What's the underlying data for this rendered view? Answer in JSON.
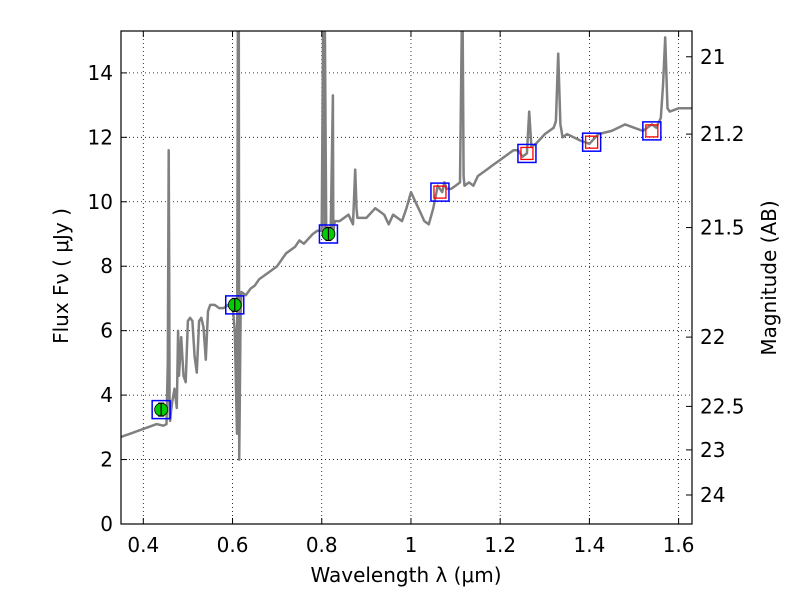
{
  "chart_data": {
    "type": "line",
    "xlabel": "Wavelength  λ (μm)",
    "ylabel": "Flux  Fν  ( μJy )",
    "ylabel_right": "Magnitude (AB)",
    "xlim": [
      0.35,
      1.63
    ],
    "ylim": [
      0,
      15.3
    ],
    "grid": "dotted",
    "x_ticks": [
      0.4,
      0.6,
      0.8,
      1.0,
      1.2,
      1.4,
      1.6
    ],
    "x_tick_labels": [
      "0.4",
      "0.6",
      "0.8",
      "1",
      "1.2",
      "1.4",
      "1.6"
    ],
    "y_ticks": [
      0,
      2,
      4,
      6,
      8,
      10,
      12,
      14
    ],
    "y_tick_labels": [
      "0",
      "2",
      "4",
      "6",
      "8",
      "10",
      "12",
      "14"
    ],
    "right_ticks": [
      {
        "label": "21",
        "flux": 14.5
      },
      {
        "label": "21.2",
        "flux": 12.1
      },
      {
        "label": "21.5",
        "flux": 9.2
      },
      {
        "label": "22",
        "flux": 5.8
      },
      {
        "label": "22.5",
        "flux": 3.65
      },
      {
        "label": "23",
        "flux": 2.3
      },
      {
        "label": "24",
        "flux": 0.9
      }
    ],
    "series": [
      {
        "name": "model_spectrum",
        "style": "line",
        "color": "#808080",
        "x": [
          0.35,
          0.37,
          0.39,
          0.41,
          0.43,
          0.445,
          0.452,
          0.455,
          0.457,
          0.458,
          0.459,
          0.46,
          0.462,
          0.465,
          0.47,
          0.475,
          0.478,
          0.48,
          0.485,
          0.49,
          0.495,
          0.5,
          0.505,
          0.51,
          0.515,
          0.52,
          0.525,
          0.53,
          0.535,
          0.54,
          0.545,
          0.55,
          0.56,
          0.57,
          0.58,
          0.59,
          0.6,
          0.605,
          0.61,
          0.612,
          0.614,
          0.615,
          0.616,
          0.618,
          0.62,
          0.63,
          0.64,
          0.65,
          0.66,
          0.67,
          0.68,
          0.7,
          0.72,
          0.74,
          0.75,
          0.76,
          0.78,
          0.79,
          0.8,
          0.803,
          0.805,
          0.806,
          0.807,
          0.81,
          0.815,
          0.82,
          0.825,
          0.826,
          0.828,
          0.83,
          0.84,
          0.86,
          0.87,
          0.875,
          0.878,
          0.88,
          0.9,
          0.92,
          0.94,
          0.95,
          0.96,
          0.98,
          0.99,
          1.0,
          1.01,
          1.02,
          1.03,
          1.04,
          1.05,
          1.06,
          1.07,
          1.075,
          1.08,
          1.09,
          1.1,
          1.11,
          1.114,
          1.116,
          1.118,
          1.12,
          1.13,
          1.14,
          1.15,
          1.17,
          1.18,
          1.2,
          1.22,
          1.23,
          1.24,
          1.25,
          1.26,
          1.265,
          1.27,
          1.28,
          1.3,
          1.32,
          1.325,
          1.33,
          1.335,
          1.34,
          1.35,
          1.38,
          1.4,
          1.42,
          1.45,
          1.48,
          1.5,
          1.52,
          1.54,
          1.55,
          1.56,
          1.565,
          1.57,
          1.575,
          1.58,
          1.6,
          1.63
        ],
        "y": [
          2.7,
          2.8,
          2.9,
          3.0,
          3.1,
          3.05,
          3.1,
          5.0,
          11.6,
          8.0,
          3.5,
          3.2,
          3.5,
          3.8,
          4.2,
          3.6,
          6.0,
          4.6,
          5.8,
          4.6,
          4.4,
          6.3,
          6.4,
          6.3,
          5.2,
          4.7,
          6.3,
          6.4,
          6.1,
          5.1,
          6.6,
          6.8,
          6.8,
          6.7,
          6.7,
          6.8,
          6.8,
          6.0,
          2.8,
          16,
          15.5,
          2.0,
          3.5,
          6.5,
          7.2,
          7.1,
          7.3,
          7.4,
          7.6,
          7.7,
          7.8,
          8.0,
          8.4,
          8.6,
          8.8,
          8.7,
          9.0,
          9.1,
          9.1,
          15.3,
          15.3,
          9.0,
          15.3,
          9.2,
          9.2,
          9.1,
          13.3,
          9.0,
          9.3,
          9.4,
          9.4,
          9.6,
          9.3,
          11.0,
          9.8,
          9.5,
          9.5,
          9.8,
          9.6,
          9.3,
          9.6,
          9.4,
          9.8,
          10.3,
          10.0,
          9.7,
          9.4,
          9.3,
          9.8,
          10.5,
          10.3,
          10.6,
          10.4,
          10.4,
          10.5,
          10.6,
          15.5,
          15.3,
          10.8,
          10.5,
          10.6,
          10.5,
          10.8,
          11.0,
          11.1,
          11.3,
          11.5,
          11.6,
          11.6,
          11.4,
          11.5,
          12.8,
          11.7,
          11.8,
          12.1,
          12.3,
          12.5,
          14.6,
          12.4,
          12.0,
          12.1,
          11.9,
          11.8,
          12.1,
          12.2,
          12.4,
          12.3,
          12.2,
          12.4,
          12.3,
          12.6,
          13.6,
          15.1,
          12.9,
          12.8,
          12.9,
          12.9
        ]
      },
      {
        "name": "observed_photometry",
        "style": "markers",
        "color": "#00cc00",
        "x": [
          0.44,
          0.605,
          0.815
        ],
        "y": [
          3.55,
          6.8,
          9.0
        ],
        "err": [
          0.2,
          0.2,
          0.2
        ]
      },
      {
        "name": "model_photometry",
        "style": "open_squares",
        "color": "#0000ff",
        "x": [
          0.44,
          0.605,
          0.815,
          1.065,
          1.26,
          1.405,
          1.54
        ],
        "y": [
          3.55,
          6.8,
          9.0,
          10.3,
          11.5,
          11.85,
          12.2
        ]
      },
      {
        "name": "upper_limits",
        "style": "small_open_squares",
        "color": "#ff0000",
        "x": [
          1.065,
          1.26,
          1.405,
          1.54
        ],
        "y": [
          10.3,
          11.5,
          11.85,
          12.2
        ]
      }
    ]
  }
}
